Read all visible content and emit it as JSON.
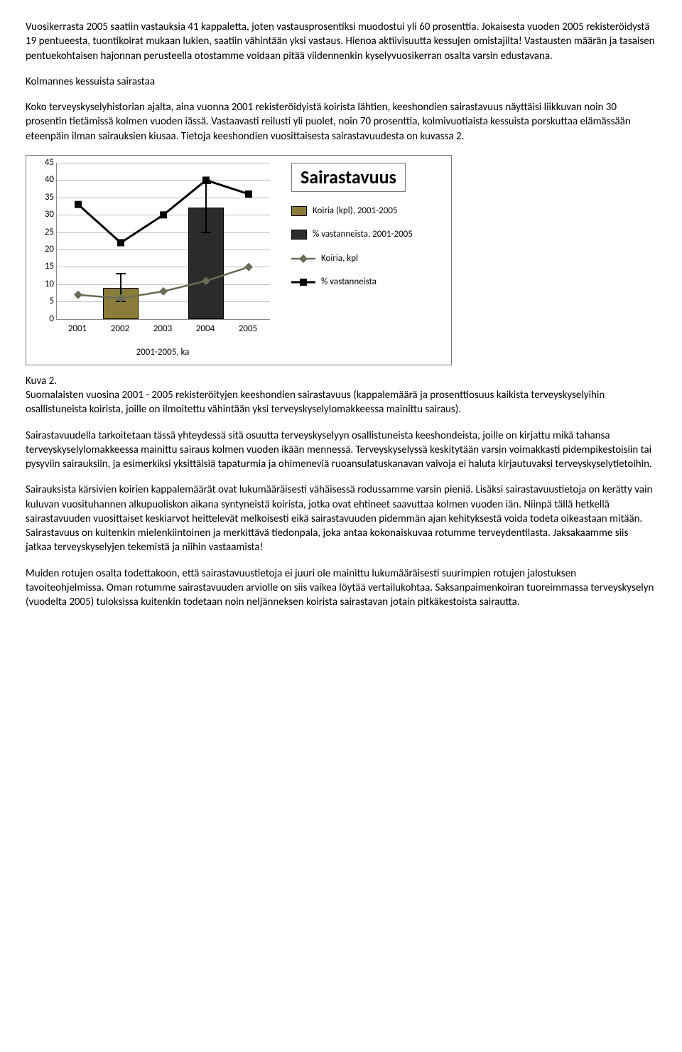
{
  "para1": "Vuosikerrasta 2005 saatiin vastauksia 41 kappaletta, joten vastausprosentiksi muodostui yli 60 prosenttia. Jokaisesta vuoden 2005 rekisteröidystä 19 pentueesta, tuontikoirat mukaan lukien, saatiin vähintään yksi vastaus. Hienoa aktiivisuutta kessujen omistajilta! Vastausten määrän ja tasaisen pentuekohtaisen hajonnan perusteella otostamme voidaan pitää viidennenkin kyselyvuosikerran osalta varsin edustavana.",
  "heading1": "Kolmannes kessuista sairastaa",
  "para2": "Koko terveyskyselyhistorian ajalta, aina vuonna 2001 rekisteröidyistä koirista lähtien, keeshondien sairastavuus näyttäisi liikkuvan noin 30 prosentin tietämissä kolmen vuoden iässä. Vastaavasti reilusti yli puolet, noin 70 prosenttia, kolmivuotiaista kessuista porskuttaa elämässään eteenpäin ilman sairauksien kiusaa. Tietoja keeshondien vuosittaisesta sairastavuudesta on kuvassa 2.",
  "chart": {
    "yticks": [
      0,
      5,
      10,
      15,
      20,
      25,
      30,
      35,
      40,
      45
    ],
    "ymax": 45,
    "xcats": [
      "2001",
      "2002",
      "2003",
      "2004",
      "2005"
    ],
    "sublabel": "2001-2005, ka",
    "bars": [
      {
        "x": 1,
        "h": 9,
        "color": "#8a7d3a",
        "err_lo": 5,
        "err_hi": 13
      },
      {
        "x": 3,
        "h": 32,
        "color": "#2b2b2b",
        "err_lo": 25,
        "err_hi": 39
      }
    ],
    "series_sq": [
      {
        "x": 0,
        "y": 33
      },
      {
        "x": 1,
        "y": 22
      },
      {
        "x": 2,
        "y": 30
      },
      {
        "x": 3,
        "y": 40
      },
      {
        "x": 4,
        "y": 36
      }
    ],
    "series_dm": [
      {
        "x": 0,
        "y": 7
      },
      {
        "x": 1,
        "y": 6
      },
      {
        "x": 2,
        "y": 8
      },
      {
        "x": 3,
        "y": 11
      },
      {
        "x": 4,
        "y": 15
      }
    ],
    "legend_title": "Sairastavuus",
    "legend": [
      {
        "kind": "swatch",
        "color": "#8a7d3a",
        "label": "Koiria (kpl), 2001-2005"
      },
      {
        "kind": "swatch",
        "color": "#2b2b2b",
        "label": "% vastanneista, 2001-2005"
      },
      {
        "kind": "diamond",
        "label": "Koiria, kpl"
      },
      {
        "kind": "square",
        "label": "% vastanneista"
      }
    ]
  },
  "caption_label": "Kuva 2.",
  "caption_text": "Suomalaisten vuosina 2001 -  2005 rekisteröityjen keeshondien sairastavuus (kappalemäärä ja prosenttiosuus kaikista terveyskyselyihin osallistuneista koirista, joille on ilmoitettu vähintään yksi terveyskyselylomakkeessa mainittu sairaus).",
  "para3": "Sairastavuudella tarkoitetaan tässä yhteydessä sitä osuutta terveyskyselyyn osallistuneista keeshondeista, joille on kirjattu mikä tahansa terveyskyselylomakkeessa mainittu sairaus kolmen vuoden ikään mennessä. Terveyskyselyssä keskitytään varsin voimakkasti pidempikestoisiin tai pysyviin sairauksiin, ja esimerkiksi yksittäisiä tapaturmia ja ohimeneviä ruoansulatuskanavan vaivoja ei haluta kirjautuvaksi terveyskyselytietoihin.",
  "para4": "Sairauksista kärsivien koirien kappalemäärät ovat lukumääräisesti vähäisessä rodussamme varsin pieniä. Lisäksi sairastavuustietoja on kerätty vain kuluvan vuosituhannen alkupuoliskon aikana syntyneistä koirista, jotka ovat ehtineet saavuttaa kolmen vuoden iän. Niinpä tällä hetkellä sairastavuuden vuosittaiset keskiarvot heittelevät melkoisesti eikä sairastavuuden pidemmän ajan kehityksestä voida todeta oikeastaan mitään.  Sairastavuus on kuitenkin mielenkiintoinen ja merkittävä tiedonpala, joka antaa kokonaiskuvaa rotumme terveydentilasta. Jaksakaamme siis jatkaa terveyskyselyjen tekemistä ja niihin vastaamista!",
  "para5": "Muiden rotujen osalta todettakoon, että sairastavuustietoja ei juuri ole mainittu lukumääräisesti suurimpien rotujen jalostuksen tavoiteohjelmissa. Oman rotumme sairastavuuden arviolle on siis vaikea löytää vertailukohtaa. Saksanpaimenkoiran tuoreimmassa terveyskyselyn (vuodelta 2005) tuloksissa kuitenkin todetaan noin neljänneksen koirista sairastavan jotain pitkäkestoista sairautta."
}
